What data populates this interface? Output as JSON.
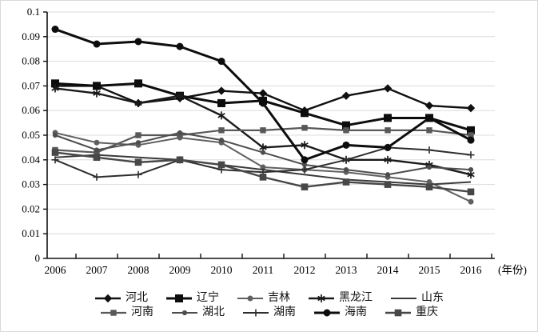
{
  "page": {
    "background": "#ffffff"
  },
  "axes": {
    "x_unit_label": "(年份)",
    "x_tick_labels": [
      "2006",
      "2007",
      "2008",
      "2009",
      "2010",
      "2011",
      "2012",
      "2013",
      "2014",
      "2015",
      "2016"
    ],
    "y_tick_labels": [
      "0",
      "0.01",
      "0.02",
      "0.03",
      "0.04",
      "0.05",
      "0.06",
      "0.07",
      "0.08",
      "0.09",
      "0.1"
    ]
  },
  "chart_data": {
    "type": "line",
    "title": "",
    "xlabel": "年份",
    "ylabel": "",
    "ylim": [
      0,
      0.1
    ],
    "ytick_step": 0.01,
    "grid": true,
    "grid_color": "#dcdcdc",
    "axis_color": "#111111",
    "legend_position": "bottom",
    "categories": [
      2006,
      2007,
      2008,
      2009,
      2010,
      2011,
      2012,
      2013,
      2014,
      2015,
      2016
    ],
    "series": [
      {
        "name": "河北",
        "key": "hebei",
        "marker": "diamond",
        "color": "#101010",
        "width": 2.4,
        "values": [
          0.07,
          0.07,
          0.063,
          0.065,
          0.068,
          0.067,
          0.06,
          0.066,
          0.069,
          0.062,
          0.061
        ]
      },
      {
        "name": "辽宁",
        "key": "liaoning",
        "marker": "square-large",
        "color": "#0d0d0d",
        "width": 3.0,
        "values": [
          0.071,
          0.07,
          0.071,
          0.066,
          0.063,
          0.064,
          0.059,
          0.054,
          0.057,
          0.057,
          0.052
        ]
      },
      {
        "name": "吉林",
        "key": "jilin",
        "marker": "circle-small",
        "color": "#606060",
        "width": 2.0,
        "values": [
          0.051,
          0.047,
          0.046,
          0.049,
          0.047,
          0.037,
          0.036,
          0.035,
          0.033,
          0.031,
          0.023
        ]
      },
      {
        "name": "黑龙江",
        "key": "heilongjiang",
        "marker": "asterisk",
        "color": "#1a1a1a",
        "width": 2.4,
        "values": [
          0.069,
          0.067,
          0.063,
          0.066,
          0.058,
          0.045,
          0.046,
          0.04,
          0.04,
          0.038,
          0.034
        ]
      },
      {
        "name": "山东",
        "key": "shandong",
        "marker": "none",
        "color": "#3a3a3a",
        "width": 2.0,
        "values": [
          0.041,
          0.042,
          0.041,
          0.04,
          0.038,
          0.036,
          0.034,
          0.032,
          0.031,
          0.03,
          0.031
        ]
      },
      {
        "name": "河南",
        "key": "henan",
        "marker": "square-small",
        "color": "#585858",
        "width": 2.2,
        "values": [
          0.044,
          0.043,
          0.05,
          0.05,
          0.052,
          0.052,
          0.053,
          0.052,
          0.052,
          0.052,
          0.05
        ]
      },
      {
        "name": "湖北",
        "key": "hubei",
        "marker": "dot",
        "color": "#4d4d4d",
        "width": 2.0,
        "values": [
          0.05,
          0.044,
          0.047,
          0.051,
          0.048,
          0.043,
          0.038,
          0.036,
          0.034,
          0.037,
          0.036
        ]
      },
      {
        "name": "湖南",
        "key": "hunan",
        "marker": "plus",
        "color": "#2e2e2e",
        "width": 2.0,
        "values": [
          0.04,
          0.033,
          0.034,
          0.04,
          0.036,
          0.035,
          0.036,
          0.04,
          0.045,
          0.044,
          0.042
        ]
      },
      {
        "name": "海南",
        "key": "hainan",
        "marker": "circle",
        "color": "#0d0d0d",
        "width": 3.0,
        "values": [
          0.093,
          0.087,
          0.088,
          0.086,
          0.08,
          0.063,
          0.04,
          0.046,
          0.045,
          0.057,
          0.048
        ]
      },
      {
        "name": "重庆",
        "key": "chongqing",
        "marker": "square-mid",
        "color": "#474747",
        "width": 2.4,
        "values": [
          0.043,
          0.041,
          0.039,
          0.04,
          0.038,
          0.033,
          0.029,
          0.031,
          0.03,
          0.029,
          0.027
        ]
      }
    ],
    "legend_rows": [
      [
        0,
        1,
        2,
        3,
        4
      ],
      [
        5,
        6,
        7,
        8,
        9
      ]
    ]
  }
}
